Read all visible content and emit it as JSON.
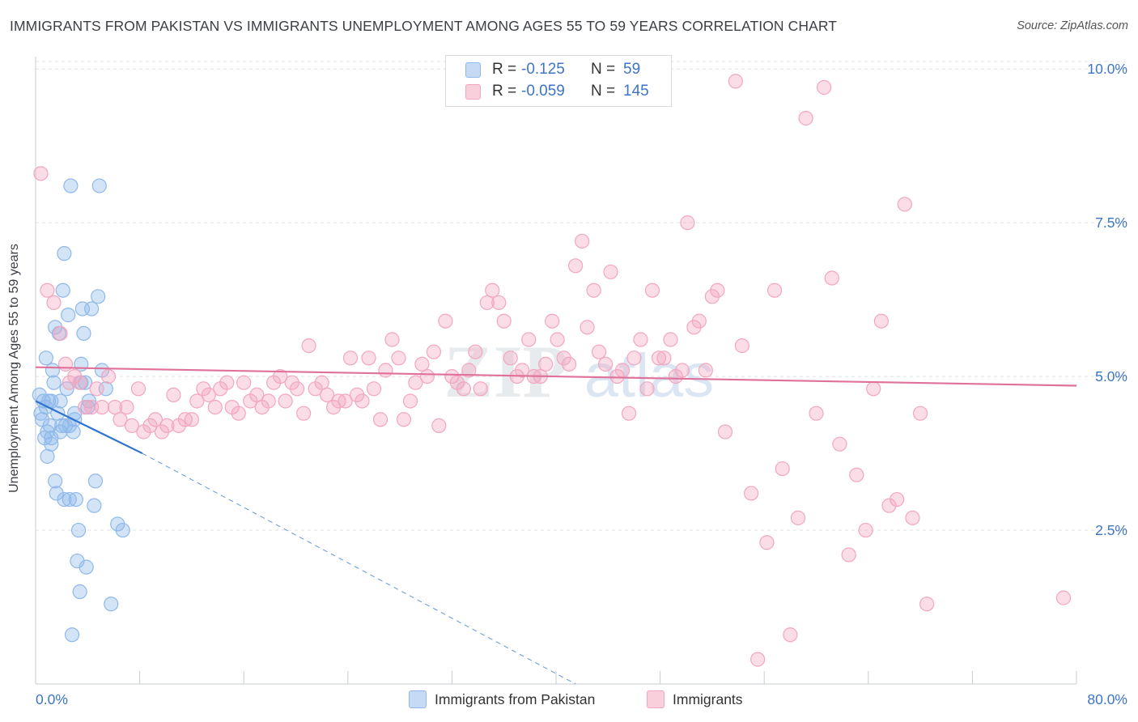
{
  "header": {
    "title": "IMMIGRANTS FROM PAKISTAN VS IMMIGRANTS UNEMPLOYMENT AMONG AGES 55 TO 59 YEARS CORRELATION CHART",
    "source": "Source: ZipAtlas.com"
  },
  "watermark": {
    "zip": "ZIP",
    "atlas": "atlas"
  },
  "legend": {
    "rows": [
      {
        "r_label": "R =",
        "r_value": "-0.125",
        "n_label": "N =",
        "n_value": "59"
      },
      {
        "r_label": "R =",
        "r_value": "-0.059",
        "n_label": "N =",
        "n_value": "145"
      }
    ]
  },
  "chart_data": {
    "type": "scatter",
    "ylabel": "Unemployment Among Ages 55 to 59 years",
    "xlim": [
      0,
      80
    ],
    "ylim": [
      0,
      10.2
    ],
    "x_tick_labels": [
      {
        "value": 0,
        "label": "0.0%"
      },
      {
        "value": 80,
        "label": "80.0%"
      }
    ],
    "y_tick_labels": [
      {
        "value": 2.5,
        "label": "2.5%"
      },
      {
        "value": 5.0,
        "label": "5.0%"
      },
      {
        "value": 7.5,
        "label": "7.5%"
      },
      {
        "value": 10.0,
        "label": "10.0%"
      }
    ],
    "x_minor_ticks": [
      0,
      8,
      16,
      24,
      32,
      40,
      48,
      56,
      64,
      72,
      80
    ],
    "grid": true,
    "legend_position": "top-center",
    "series": [
      {
        "name": "Immigrants from Pakistan",
        "color": "#8fb8ea",
        "line_color": "#2f74d0",
        "trend": {
          "x0": 0,
          "y0": 4.6,
          "x1": 8.2,
          "y1": 3.75,
          "dash_x1": 41.5,
          "dash_y1": 0.0
        },
        "points": [
          [
            0.3,
            4.7
          ],
          [
            0.4,
            4.4
          ],
          [
            0.5,
            4.3
          ],
          [
            0.6,
            4.6
          ],
          [
            0.7,
            4.0
          ],
          [
            0.8,
            5.3
          ],
          [
            0.8,
            4.5
          ],
          [
            0.9,
            3.7
          ],
          [
            1.0,
            4.6
          ],
          [
            1.1,
            4.2
          ],
          [
            1.2,
            3.9
          ],
          [
            1.2,
            4.6
          ],
          [
            1.3,
            5.1
          ],
          [
            1.4,
            4.9
          ],
          [
            1.5,
            5.8
          ],
          [
            1.5,
            3.3
          ],
          [
            1.6,
            3.1
          ],
          [
            1.7,
            4.4
          ],
          [
            1.8,
            5.7
          ],
          [
            1.9,
            4.1
          ],
          [
            2.0,
            4.2
          ],
          [
            2.1,
            6.4
          ],
          [
            2.2,
            7.0
          ],
          [
            2.3,
            4.2
          ],
          [
            2.4,
            4.8
          ],
          [
            2.5,
            6.0
          ],
          [
            2.6,
            3.0
          ],
          [
            2.7,
            8.1
          ],
          [
            2.8,
            0.8
          ],
          [
            2.9,
            4.1
          ],
          [
            3.0,
            4.3
          ],
          [
            3.0,
            4.4
          ],
          [
            3.1,
            3.0
          ],
          [
            3.2,
            2.0
          ],
          [
            3.3,
            2.5
          ],
          [
            3.4,
            1.5
          ],
          [
            3.5,
            5.2
          ],
          [
            3.5,
            4.9
          ],
          [
            3.6,
            6.1
          ],
          [
            3.7,
            5.7
          ],
          [
            3.8,
            4.9
          ],
          [
            3.9,
            1.9
          ],
          [
            4.0,
            4.5
          ],
          [
            4.1,
            4.6
          ],
          [
            4.3,
            6.1
          ],
          [
            4.5,
            2.9
          ],
          [
            4.6,
            3.3
          ],
          [
            4.8,
            6.3
          ],
          [
            4.9,
            8.1
          ],
          [
            5.1,
            5.1
          ],
          [
            5.4,
            4.8
          ],
          [
            5.8,
            1.3
          ],
          [
            6.3,
            2.6
          ],
          [
            6.7,
            2.5
          ],
          [
            1.2,
            4.0
          ],
          [
            2.6,
            4.2
          ],
          [
            0.9,
            4.1
          ],
          [
            2.2,
            3.0
          ],
          [
            1.9,
            4.6
          ]
        ]
      },
      {
        "name": "Immigrants",
        "color": "#f3a6bf",
        "line_color": "#e0719a",
        "trend": {
          "x0": 0,
          "y0": 5.15,
          "x1": 80,
          "y1": 4.85
        },
        "points": [
          [
            0.4,
            8.3
          ],
          [
            0.9,
            6.4
          ],
          [
            1.4,
            6.2
          ],
          [
            1.9,
            5.7
          ],
          [
            2.3,
            5.2
          ],
          [
            2.6,
            4.9
          ],
          [
            3.0,
            5.0
          ],
          [
            3.4,
            4.9
          ],
          [
            3.8,
            4.5
          ],
          [
            4.3,
            4.5
          ],
          [
            4.7,
            4.8
          ],
          [
            5.1,
            4.5
          ],
          [
            5.6,
            5.0
          ],
          [
            6.1,
            4.5
          ],
          [
            6.5,
            4.3
          ],
          [
            7.0,
            4.5
          ],
          [
            7.4,
            4.2
          ],
          [
            7.9,
            4.8
          ],
          [
            8.3,
            4.1
          ],
          [
            8.8,
            4.2
          ],
          [
            9.2,
            4.3
          ],
          [
            9.7,
            4.1
          ],
          [
            10.1,
            4.2
          ],
          [
            10.6,
            4.7
          ],
          [
            11.0,
            4.2
          ],
          [
            11.5,
            4.3
          ],
          [
            12.0,
            4.3
          ],
          [
            12.4,
            4.6
          ],
          [
            12.9,
            4.8
          ],
          [
            13.3,
            4.7
          ],
          [
            13.8,
            4.5
          ],
          [
            14.2,
            4.8
          ],
          [
            14.7,
            4.9
          ],
          [
            15.1,
            4.5
          ],
          [
            15.6,
            4.4
          ],
          [
            16.0,
            4.9
          ],
          [
            16.5,
            4.6
          ],
          [
            17.0,
            4.7
          ],
          [
            17.4,
            4.5
          ],
          [
            17.9,
            4.6
          ],
          [
            18.3,
            4.9
          ],
          [
            18.8,
            5.0
          ],
          [
            19.2,
            4.6
          ],
          [
            19.7,
            4.9
          ],
          [
            20.1,
            4.8
          ],
          [
            20.6,
            4.4
          ],
          [
            21.0,
            5.5
          ],
          [
            21.5,
            4.8
          ],
          [
            22.0,
            4.9
          ],
          [
            22.4,
            4.7
          ],
          [
            22.9,
            4.5
          ],
          [
            23.3,
            4.6
          ],
          [
            23.8,
            4.6
          ],
          [
            24.2,
            5.3
          ],
          [
            24.7,
            4.7
          ],
          [
            25.1,
            4.6
          ],
          [
            25.6,
            5.3
          ],
          [
            26.0,
            4.8
          ],
          [
            26.5,
            4.3
          ],
          [
            26.9,
            5.1
          ],
          [
            27.4,
            5.6
          ],
          [
            27.9,
            5.3
          ],
          [
            28.3,
            4.3
          ],
          [
            28.8,
            4.6
          ],
          [
            29.2,
            4.9
          ],
          [
            29.7,
            5.2
          ],
          [
            30.1,
            5.0
          ],
          [
            30.6,
            5.4
          ],
          [
            31.0,
            4.2
          ],
          [
            31.5,
            5.9
          ],
          [
            32.0,
            5.0
          ],
          [
            32.4,
            4.9
          ],
          [
            32.9,
            4.8
          ],
          [
            33.3,
            5.1
          ],
          [
            33.8,
            5.4
          ],
          [
            34.2,
            4.8
          ],
          [
            34.7,
            6.2
          ],
          [
            35.1,
            6.4
          ],
          [
            35.6,
            6.2
          ],
          [
            36.0,
            5.9
          ],
          [
            36.5,
            5.3
          ],
          [
            37.0,
            5.0
          ],
          [
            37.4,
            5.1
          ],
          [
            37.9,
            5.6
          ],
          [
            38.3,
            5.0
          ],
          [
            38.8,
            5.0
          ],
          [
            39.2,
            5.2
          ],
          [
            39.7,
            5.9
          ],
          [
            40.1,
            5.6
          ],
          [
            40.6,
            5.3
          ],
          [
            41.0,
            5.2
          ],
          [
            41.5,
            6.8
          ],
          [
            42.0,
            7.2
          ],
          [
            42.4,
            5.8
          ],
          [
            42.9,
            6.4
          ],
          [
            43.3,
            5.4
          ],
          [
            43.8,
            5.2
          ],
          [
            44.2,
            6.7
          ],
          [
            44.7,
            5.0
          ],
          [
            45.1,
            5.1
          ],
          [
            45.6,
            4.4
          ],
          [
            46.0,
            5.3
          ],
          [
            46.5,
            5.6
          ],
          [
            47.0,
            4.8
          ],
          [
            47.4,
            6.4
          ],
          [
            47.9,
            5.3
          ],
          [
            48.3,
            5.3
          ],
          [
            48.8,
            5.6
          ],
          [
            49.2,
            5.0
          ],
          [
            49.7,
            5.1
          ],
          [
            50.1,
            7.5
          ],
          [
            50.6,
            5.8
          ],
          [
            51.0,
            5.9
          ],
          [
            51.5,
            5.1
          ],
          [
            52.0,
            6.3
          ],
          [
            52.4,
            6.4
          ],
          [
            53.0,
            4.1
          ],
          [
            53.8,
            9.8
          ],
          [
            54.3,
            5.5
          ],
          [
            55.0,
            3.1
          ],
          [
            55.5,
            0.4
          ],
          [
            56.2,
            2.3
          ],
          [
            56.8,
            6.4
          ],
          [
            57.4,
            3.5
          ],
          [
            58.0,
            0.8
          ],
          [
            58.6,
            2.7
          ],
          [
            59.2,
            9.2
          ],
          [
            60.0,
            4.4
          ],
          [
            60.6,
            9.7
          ],
          [
            61.2,
            6.6
          ],
          [
            61.8,
            3.9
          ],
          [
            62.5,
            2.1
          ],
          [
            63.1,
            3.4
          ],
          [
            63.8,
            2.5
          ],
          [
            64.4,
            4.8
          ],
          [
            65.0,
            5.9
          ],
          [
            65.6,
            2.9
          ],
          [
            66.2,
            3.0
          ],
          [
            66.8,
            7.8
          ],
          [
            67.4,
            2.7
          ],
          [
            68.0,
            4.4
          ],
          [
            68.5,
            1.3
          ],
          [
            79.0,
            1.4
          ]
        ]
      }
    ]
  },
  "bottom_legend": {
    "items": [
      {
        "label": "Immigrants from Pakistan",
        "color": "#8fb8ea"
      },
      {
        "label": "Immigrants",
        "color": "#f3a6bf"
      }
    ]
  }
}
